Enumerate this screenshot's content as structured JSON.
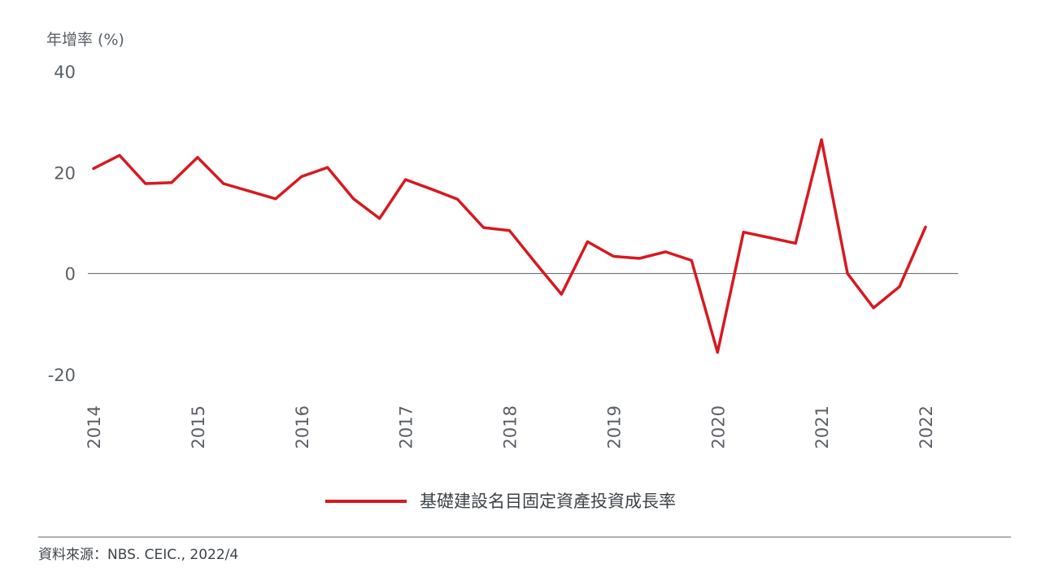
{
  "chart_data": {
    "type": "line",
    "ylabel": "年增率 (%)",
    "ylim": [
      -20,
      40
    ],
    "yticks": [
      "40",
      "20",
      "0",
      "-20"
    ],
    "xlim": [
      2014,
      2022.3
    ],
    "xticks": [
      "2014",
      "2015",
      "2016",
      "2017",
      "2018",
      "2019",
      "2020",
      "2021",
      "2022"
    ],
    "grid": false,
    "legend_position": "bottom-center",
    "colors": {
      "series": "#d71920",
      "zero_line": "#5a5f66"
    },
    "series": [
      {
        "name": "基礎建設名目固定資產投資成長率",
        "x": [
          2014.0,
          2014.25,
          2014.5,
          2014.75,
          2015.0,
          2015.25,
          2015.5,
          2015.75,
          2016.0,
          2016.25,
          2016.5,
          2016.75,
          2017.0,
          2017.25,
          2017.5,
          2017.75,
          2018.0,
          2018.25,
          2018.5,
          2018.75,
          2019.0,
          2019.25,
          2019.5,
          2019.75,
          2020.0,
          2020.25,
          2020.5,
          2020.75,
          2021.0,
          2021.25,
          2021.5,
          2021.75,
          2022.0
        ],
        "y": [
          20.8,
          23.4,
          17.8,
          18.0,
          23.0,
          17.8,
          16.3,
          14.8,
          19.2,
          21.0,
          14.8,
          10.9,
          18.6,
          16.7,
          14.7,
          9.1,
          8.5,
          2.1,
          -4.1,
          6.3,
          3.4,
          3.0,
          4.3,
          2.6,
          -15.6,
          8.2,
          7.1,
          6.0,
          26.5,
          0.0,
          -6.8,
          -2.6,
          9.2
        ]
      }
    ]
  },
  "source_text": "資料來源：NBS. CEIC., 2022/4"
}
